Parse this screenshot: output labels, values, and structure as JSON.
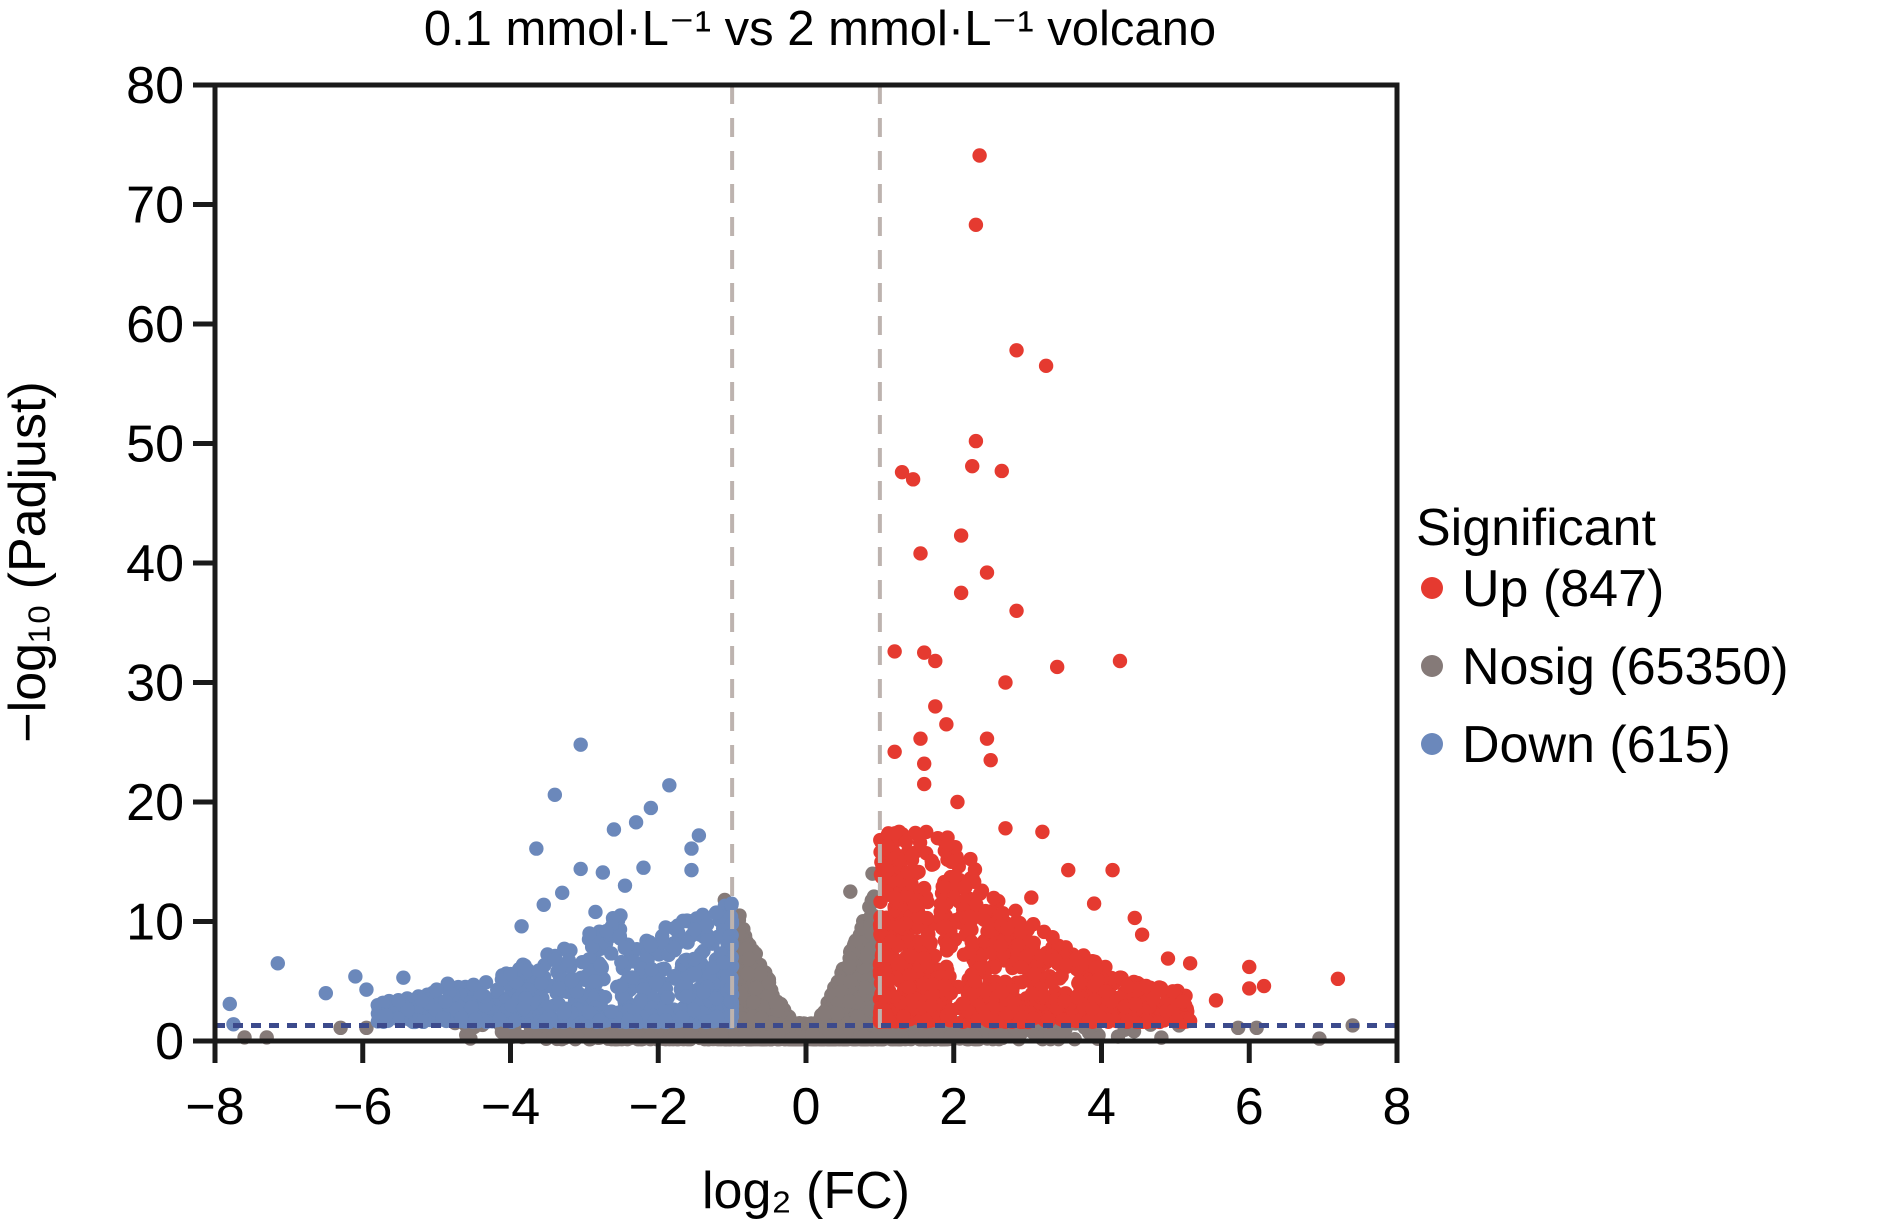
{
  "chart_data": {
    "type": "scatter",
    "title": "0.1 mmol·L⁻¹ vs 2 mmol·L⁻¹ volcano",
    "xlabel": "log₂ (FC)",
    "ylabel": "−log₁₀ (Padjust)",
    "xlim": [
      -8,
      8
    ],
    "ylim": [
      0,
      80
    ],
    "xticks": [
      -8,
      -6,
      -4,
      -2,
      0,
      2,
      4,
      6,
      8
    ],
    "xtick_labels": [
      "−8",
      "−6",
      "−4",
      "−2",
      "0",
      "2",
      "4",
      "6",
      "8"
    ],
    "yticks": [
      0,
      10,
      20,
      30,
      40,
      50,
      60,
      70,
      80
    ],
    "ytick_labels": [
      "0",
      "10",
      "20",
      "30",
      "40",
      "50",
      "60",
      "70",
      "80"
    ],
    "grid": false,
    "thresholds": {
      "fc_vertical": [
        -1,
        1
      ],
      "padj_horizontal": 1.3,
      "vertical_color": "#bdb3af",
      "horizontal_color": "#3c4a8c"
    },
    "legend": {
      "title": "Significant",
      "placement": "right",
      "entries": [
        {
          "key": "up",
          "label": "Up (847)",
          "color": "#e53a30"
        },
        {
          "key": "nosig",
          "label": "Nosig (65350)",
          "color": "#857a78"
        },
        {
          "key": "down",
          "label": "Down (615)",
          "color": "#6b88bb"
        }
      ]
    },
    "series": [
      {
        "name": "Up",
        "count": 847,
        "color": "#e53a30",
        "x_range": [
          1,
          7.2
        ],
        "highlighted_points": [
          [
            2.35,
            74.1
          ],
          [
            2.3,
            68.3
          ],
          [
            2.85,
            57.8
          ],
          [
            3.25,
            56.5
          ],
          [
            2.3,
            50.2
          ],
          [
            1.3,
            47.6
          ],
          [
            1.45,
            47.0
          ],
          [
            2.25,
            48.1
          ],
          [
            2.65,
            47.7
          ],
          [
            2.1,
            42.3
          ],
          [
            1.55,
            40.8
          ],
          [
            2.45,
            39.2
          ],
          [
            2.1,
            37.5
          ],
          [
            2.85,
            36.0
          ],
          [
            1.2,
            32.6
          ],
          [
            1.6,
            32.5
          ],
          [
            1.75,
            31.8
          ],
          [
            3.4,
            31.3
          ],
          [
            4.25,
            31.8
          ],
          [
            1.75,
            28.0
          ],
          [
            2.7,
            30.0
          ],
          [
            2.45,
            25.3
          ],
          [
            1.9,
            26.5
          ],
          [
            1.55,
            25.3
          ],
          [
            1.2,
            24.2
          ],
          [
            1.6,
            23.2
          ],
          [
            2.5,
            23.5
          ],
          [
            3.2,
            17.5
          ],
          [
            3.55,
            14.3
          ],
          [
            4.15,
            14.3
          ],
          [
            4.45,
            10.3
          ],
          [
            4.55,
            8.9
          ],
          [
            4.9,
            6.9
          ],
          [
            5.2,
            6.5
          ],
          [
            5.55,
            3.4
          ],
          [
            6.0,
            6.2
          ],
          [
            6.0,
            4.4
          ],
          [
            6.2,
            4.6
          ],
          [
            7.2,
            5.2
          ],
          [
            3.9,
            11.5
          ],
          [
            3.05,
            12.0
          ],
          [
            2.7,
            17.8
          ],
          [
            2.05,
            20.0
          ],
          [
            1.6,
            21.5
          ],
          [
            4.7,
            3.5
          ],
          [
            5.1,
            3.3
          ],
          [
            3.95,
            5.1
          ],
          [
            4.35,
            4.6
          ]
        ]
      },
      {
        "name": "Nosig",
        "count": 65350,
        "color": "#857a78",
        "x_range": [
          -7.9,
          7.4
        ],
        "highlighted_points": [
          [
            -1.1,
            11.8
          ],
          [
            -0.9,
            10.5
          ],
          [
            0.9,
            14.0
          ],
          [
            0.6,
            12.5
          ],
          [
            -6.3,
            1.1
          ],
          [
            -5.95,
            1.1
          ],
          [
            -7.6,
            0.3
          ],
          [
            -7.3,
            0.3
          ],
          [
            -4.75,
            1.5
          ],
          [
            -4.6,
            1.3
          ],
          [
            5.85,
            1.1
          ],
          [
            6.1,
            1.1
          ],
          [
            6.95,
            0.2
          ],
          [
            7.4,
            1.3
          ],
          [
            4.45,
            1.6
          ],
          [
            5.05,
            1.3
          ]
        ]
      },
      {
        "name": "Down",
        "count": 615,
        "color": "#6b88bb",
        "x_range": [
          -7.85,
          -1
        ],
        "highlighted_points": [
          [
            -3.05,
            24.8
          ],
          [
            -1.85,
            21.4
          ],
          [
            -3.4,
            20.6
          ],
          [
            -2.1,
            19.5
          ],
          [
            -2.3,
            18.3
          ],
          [
            -1.45,
            17.2
          ],
          [
            -2.6,
            17.7
          ],
          [
            -1.55,
            16.1
          ],
          [
            -3.65,
            16.1
          ],
          [
            -3.05,
            14.4
          ],
          [
            -2.2,
            14.5
          ],
          [
            -1.55,
            14.3
          ],
          [
            -2.75,
            14.1
          ],
          [
            -2.45,
            13.0
          ],
          [
            -3.3,
            12.4
          ],
          [
            -2.85,
            10.8
          ],
          [
            -3.55,
            11.4
          ],
          [
            -3.85,
            9.6
          ],
          [
            -2.7,
            9.2
          ],
          [
            -1.9,
            9.5
          ],
          [
            -7.15,
            6.5
          ],
          [
            -6.1,
            5.4
          ],
          [
            -5.45,
            5.3
          ],
          [
            -4.85,
            4.8
          ],
          [
            -5.95,
            4.3
          ],
          [
            -5.0,
            4.3
          ],
          [
            -4.5,
            4.7
          ],
          [
            -7.8,
            3.1
          ],
          [
            -7.75,
            1.4
          ],
          [
            -6.5,
            4.0
          ],
          [
            -5.2,
            3.4
          ],
          [
            -4.0,
            5.6
          ],
          [
            -3.4,
            6.8
          ],
          [
            -2.5,
            6.6
          ],
          [
            -2.1,
            8.0
          ]
        ]
      }
    ]
  }
}
